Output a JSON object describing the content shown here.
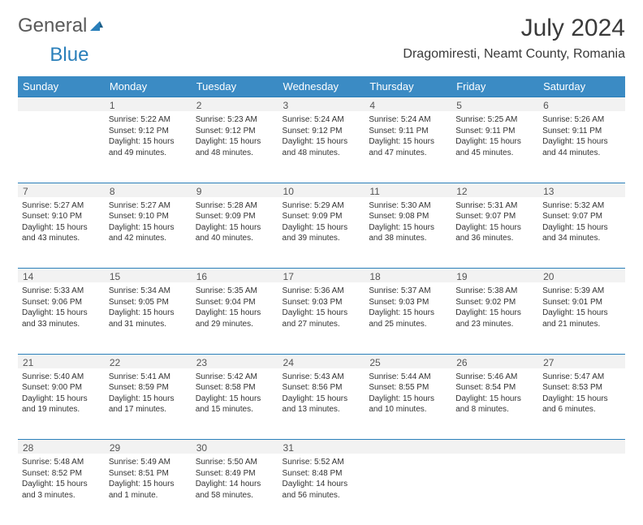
{
  "brand": {
    "part1": "General",
    "part2": "Blue"
  },
  "title": "July 2024",
  "location": "Dragomiresti, Neamt County, Romania",
  "colors": {
    "header_bg": "#3b8bc4",
    "header_fg": "#ffffff",
    "border": "#2a7fba",
    "daynum_bg": "#f2f2f2",
    "text": "#333333",
    "brand_gray": "#5a5a5a",
    "brand_blue": "#2a7fba"
  },
  "weekdays": [
    "Sunday",
    "Monday",
    "Tuesday",
    "Wednesday",
    "Thursday",
    "Friday",
    "Saturday"
  ],
  "grid": [
    [
      null,
      {
        "n": "1",
        "sr": "5:22 AM",
        "ss": "9:12 PM",
        "dl": "15 hours and 49 minutes."
      },
      {
        "n": "2",
        "sr": "5:23 AM",
        "ss": "9:12 PM",
        "dl": "15 hours and 48 minutes."
      },
      {
        "n": "3",
        "sr": "5:24 AM",
        "ss": "9:12 PM",
        "dl": "15 hours and 48 minutes."
      },
      {
        "n": "4",
        "sr": "5:24 AM",
        "ss": "9:11 PM",
        "dl": "15 hours and 47 minutes."
      },
      {
        "n": "5",
        "sr": "5:25 AM",
        "ss": "9:11 PM",
        "dl": "15 hours and 45 minutes."
      },
      {
        "n": "6",
        "sr": "5:26 AM",
        "ss": "9:11 PM",
        "dl": "15 hours and 44 minutes."
      }
    ],
    [
      {
        "n": "7",
        "sr": "5:27 AM",
        "ss": "9:10 PM",
        "dl": "15 hours and 43 minutes."
      },
      {
        "n": "8",
        "sr": "5:27 AM",
        "ss": "9:10 PM",
        "dl": "15 hours and 42 minutes."
      },
      {
        "n": "9",
        "sr": "5:28 AM",
        "ss": "9:09 PM",
        "dl": "15 hours and 40 minutes."
      },
      {
        "n": "10",
        "sr": "5:29 AM",
        "ss": "9:09 PM",
        "dl": "15 hours and 39 minutes."
      },
      {
        "n": "11",
        "sr": "5:30 AM",
        "ss": "9:08 PM",
        "dl": "15 hours and 38 minutes."
      },
      {
        "n": "12",
        "sr": "5:31 AM",
        "ss": "9:07 PM",
        "dl": "15 hours and 36 minutes."
      },
      {
        "n": "13",
        "sr": "5:32 AM",
        "ss": "9:07 PM",
        "dl": "15 hours and 34 minutes."
      }
    ],
    [
      {
        "n": "14",
        "sr": "5:33 AM",
        "ss": "9:06 PM",
        "dl": "15 hours and 33 minutes."
      },
      {
        "n": "15",
        "sr": "5:34 AM",
        "ss": "9:05 PM",
        "dl": "15 hours and 31 minutes."
      },
      {
        "n": "16",
        "sr": "5:35 AM",
        "ss": "9:04 PM",
        "dl": "15 hours and 29 minutes."
      },
      {
        "n": "17",
        "sr": "5:36 AM",
        "ss": "9:03 PM",
        "dl": "15 hours and 27 minutes."
      },
      {
        "n": "18",
        "sr": "5:37 AM",
        "ss": "9:03 PM",
        "dl": "15 hours and 25 minutes."
      },
      {
        "n": "19",
        "sr": "5:38 AM",
        "ss": "9:02 PM",
        "dl": "15 hours and 23 minutes."
      },
      {
        "n": "20",
        "sr": "5:39 AM",
        "ss": "9:01 PM",
        "dl": "15 hours and 21 minutes."
      }
    ],
    [
      {
        "n": "21",
        "sr": "5:40 AM",
        "ss": "9:00 PM",
        "dl": "15 hours and 19 minutes."
      },
      {
        "n": "22",
        "sr": "5:41 AM",
        "ss": "8:59 PM",
        "dl": "15 hours and 17 minutes."
      },
      {
        "n": "23",
        "sr": "5:42 AM",
        "ss": "8:58 PM",
        "dl": "15 hours and 15 minutes."
      },
      {
        "n": "24",
        "sr": "5:43 AM",
        "ss": "8:56 PM",
        "dl": "15 hours and 13 minutes."
      },
      {
        "n": "25",
        "sr": "5:44 AM",
        "ss": "8:55 PM",
        "dl": "15 hours and 10 minutes."
      },
      {
        "n": "26",
        "sr": "5:46 AM",
        "ss": "8:54 PM",
        "dl": "15 hours and 8 minutes."
      },
      {
        "n": "27",
        "sr": "5:47 AM",
        "ss": "8:53 PM",
        "dl": "15 hours and 6 minutes."
      }
    ],
    [
      {
        "n": "28",
        "sr": "5:48 AM",
        "ss": "8:52 PM",
        "dl": "15 hours and 3 minutes."
      },
      {
        "n": "29",
        "sr": "5:49 AM",
        "ss": "8:51 PM",
        "dl": "15 hours and 1 minute."
      },
      {
        "n": "30",
        "sr": "5:50 AM",
        "ss": "8:49 PM",
        "dl": "14 hours and 58 minutes."
      },
      {
        "n": "31",
        "sr": "5:52 AM",
        "ss": "8:48 PM",
        "dl": "14 hours and 56 minutes."
      },
      null,
      null,
      null
    ]
  ],
  "labels": {
    "sunrise": "Sunrise:",
    "sunset": "Sunset:",
    "daylight": "Daylight:"
  }
}
